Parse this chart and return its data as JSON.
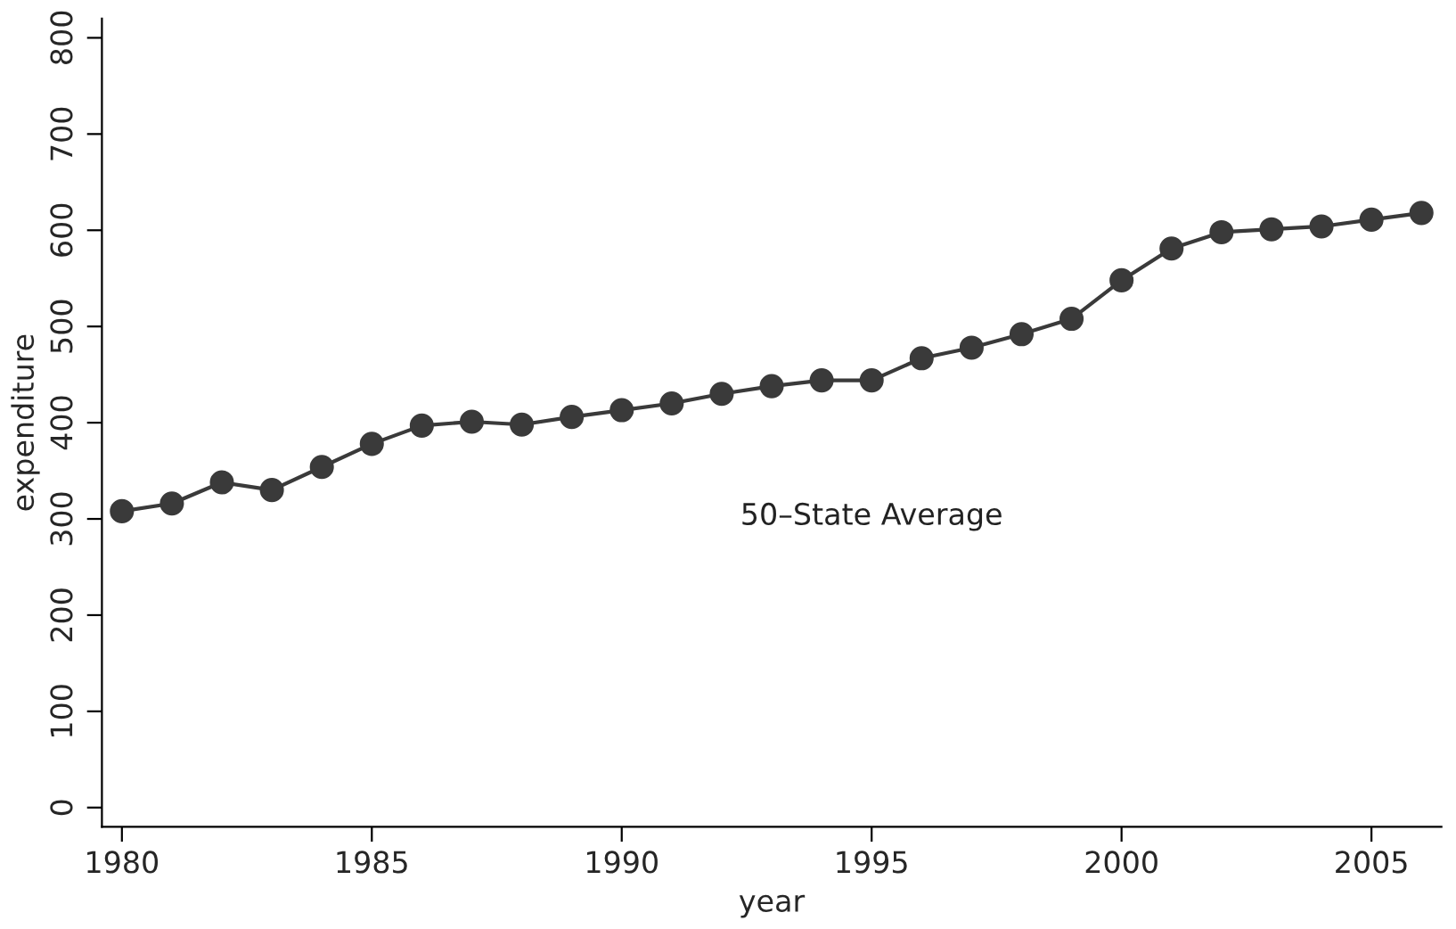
{
  "chart_data": {
    "type": "line",
    "xlabel": "year",
    "ylabel": "expenditure",
    "x": [
      1980,
      1981,
      1982,
      1983,
      1984,
      1985,
      1986,
      1987,
      1988,
      1989,
      1990,
      1991,
      1992,
      1993,
      1994,
      1995,
      1996,
      1997,
      1998,
      1999,
      2000,
      2001,
      2002,
      2003,
      2004,
      2005,
      2006
    ],
    "series": [
      {
        "name": "50–State Average",
        "color": "#3a3a3a",
        "values": [
          308,
          316,
          338,
          330,
          354,
          378,
          397,
          401,
          398,
          406,
          413,
          420,
          430,
          438,
          444,
          444,
          467,
          478,
          492,
          508,
          548,
          581,
          598,
          601,
          604,
          611,
          618
        ]
      }
    ],
    "xlim": [
      1979.6,
      2006.4
    ],
    "ylim": [
      -20,
      820
    ],
    "xticks": [
      1980,
      1985,
      1990,
      1995,
      2000,
      2005
    ],
    "yticks": [
      0,
      100,
      200,
      300,
      400,
      500,
      600,
      700,
      800
    ],
    "marker": "circle",
    "line_style": "solid",
    "grid": false,
    "legend": false
  }
}
